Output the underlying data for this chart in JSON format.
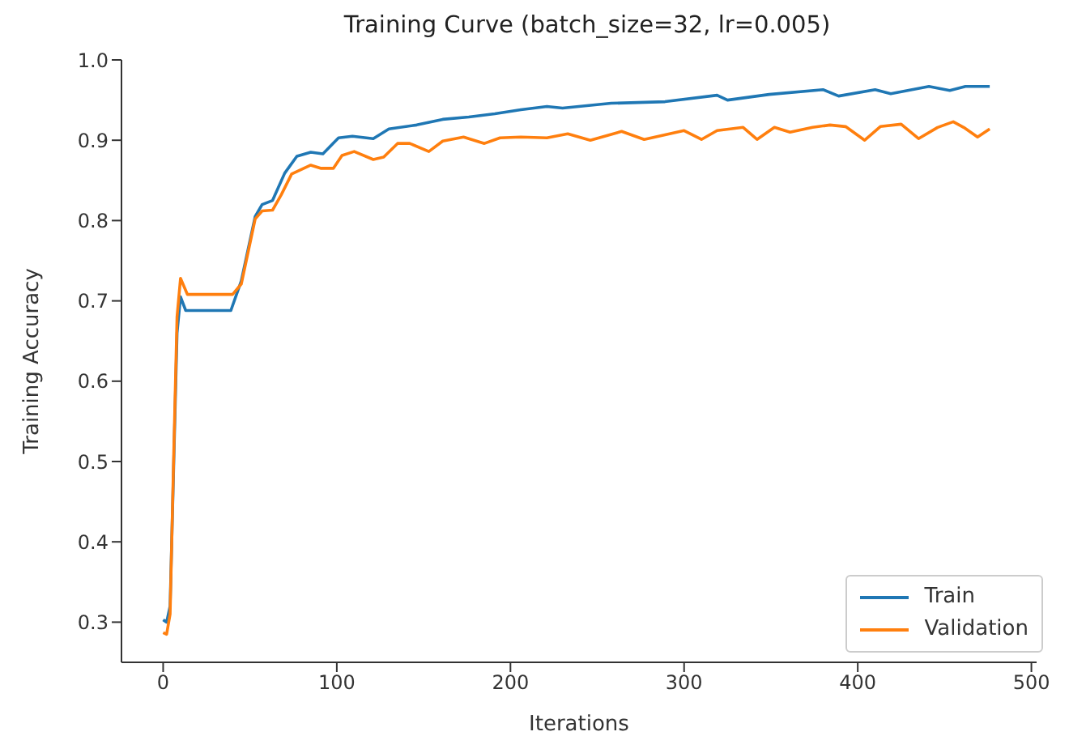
{
  "chart_data": {
    "type": "line",
    "title": "Training Curve (batch_size=32, lr=0.005)",
    "xlabel": "Iterations",
    "ylabel": "Training Accuracy",
    "xlim": [
      -24,
      503
    ],
    "xticks": [
      0,
      100,
      200,
      300,
      400,
      500
    ],
    "ylim": [
      0.25,
      1.0
    ],
    "yticks": [
      0.3,
      0.4,
      0.5,
      0.6,
      0.7,
      0.8,
      0.9,
      {
        "value": 1.0,
        "label": "1.0"
      }
    ],
    "grid": false,
    "legend": "bottom right",
    "marker": "none",
    "line_style": "solid",
    "series": [
      {
        "name": "Train",
        "color": "#1f77b4",
        "x": [
          0,
          2,
          4,
          8,
          10,
          13,
          20,
          30,
          39,
          45,
          53,
          57,
          63,
          70,
          77,
          85,
          92,
          101,
          109,
          121,
          130,
          146,
          161,
          176,
          191,
          206,
          221,
          230,
          258,
          289,
          319,
          325,
          349,
          380,
          389,
          410,
          419,
          441,
          453,
          462,
          476
        ],
        "values": [
          0.303,
          0.3,
          0.32,
          0.66,
          0.705,
          0.688,
          0.688,
          0.688,
          0.688,
          0.725,
          0.805,
          0.82,
          0.825,
          0.859,
          0.88,
          0.885,
          0.883,
          0.903,
          0.905,
          0.902,
          0.914,
          0.919,
          0.926,
          0.929,
          0.933,
          0.938,
          0.942,
          0.94,
          0.946,
          0.948,
          0.956,
          0.95,
          0.957,
          0.963,
          0.955,
          0.963,
          0.958,
          0.967,
          0.962,
          0.967,
          0.967
        ]
      },
      {
        "name": "Validation",
        "color": "#ff7f0e",
        "x": [
          0,
          2,
          4,
          6,
          8,
          10,
          14,
          20,
          30,
          40,
          45,
          53,
          57,
          63,
          68,
          74,
          85,
          91,
          98,
          103,
          110,
          121,
          127,
          135,
          142,
          153,
          161,
          173,
          185,
          194,
          206,
          221,
          233,
          246,
          264,
          277,
          300,
          310,
          319,
          334,
          342,
          352,
          361,
          374,
          384,
          393,
          404,
          413,
          425,
          435,
          446,
          455,
          461,
          469,
          476
        ],
        "values": [
          0.287,
          0.285,
          0.31,
          0.5,
          0.68,
          0.728,
          0.708,
          0.708,
          0.708,
          0.708,
          0.721,
          0.802,
          0.812,
          0.813,
          0.832,
          0.858,
          0.869,
          0.865,
          0.865,
          0.881,
          0.886,
          0.876,
          0.879,
          0.896,
          0.896,
          0.886,
          0.899,
          0.904,
          0.896,
          0.903,
          0.904,
          0.903,
          0.908,
          0.9,
          0.911,
          0.901,
          0.912,
          0.901,
          0.912,
          0.916,
          0.901,
          0.916,
          0.91,
          0.916,
          0.919,
          0.917,
          0.9,
          0.917,
          0.92,
          0.902,
          0.916,
          0.923,
          0.916,
          0.904,
          0.914
        ]
      }
    ]
  }
}
